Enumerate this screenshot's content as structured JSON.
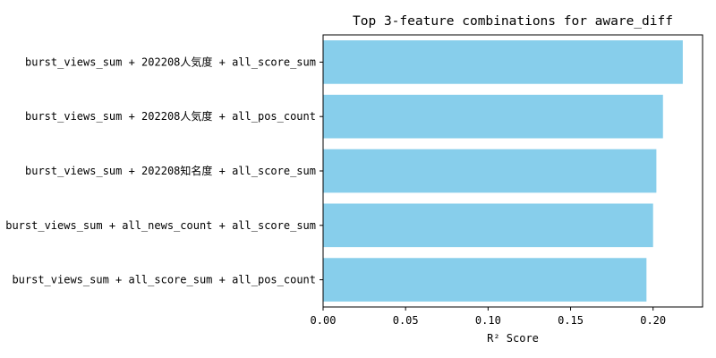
{
  "chart_data": {
    "type": "bar",
    "orientation": "horizontal",
    "title": "Top 3-feature combinations for aware_diff",
    "xlabel": "R² Score",
    "ylabel": "",
    "xlim": [
      0,
      0.23
    ],
    "xticks": [
      "0.00",
      "0.05",
      "0.10",
      "0.15",
      "0.20"
    ],
    "grid": false,
    "categories": [
      "burst_views_sum + 202208人気度 + all_score_sum",
      "burst_views_sum + 202208人気度 + all_pos_count",
      "burst_views_sum + 202208知名度 + all_score_sum",
      "burst_views_sum + all_news_count + all_score_sum",
      "burst_views_sum + all_score_sum + all_pos_count"
    ],
    "values": [
      0.218,
      0.206,
      0.202,
      0.2,
      0.196
    ],
    "bar_color": "#87ceeb"
  }
}
